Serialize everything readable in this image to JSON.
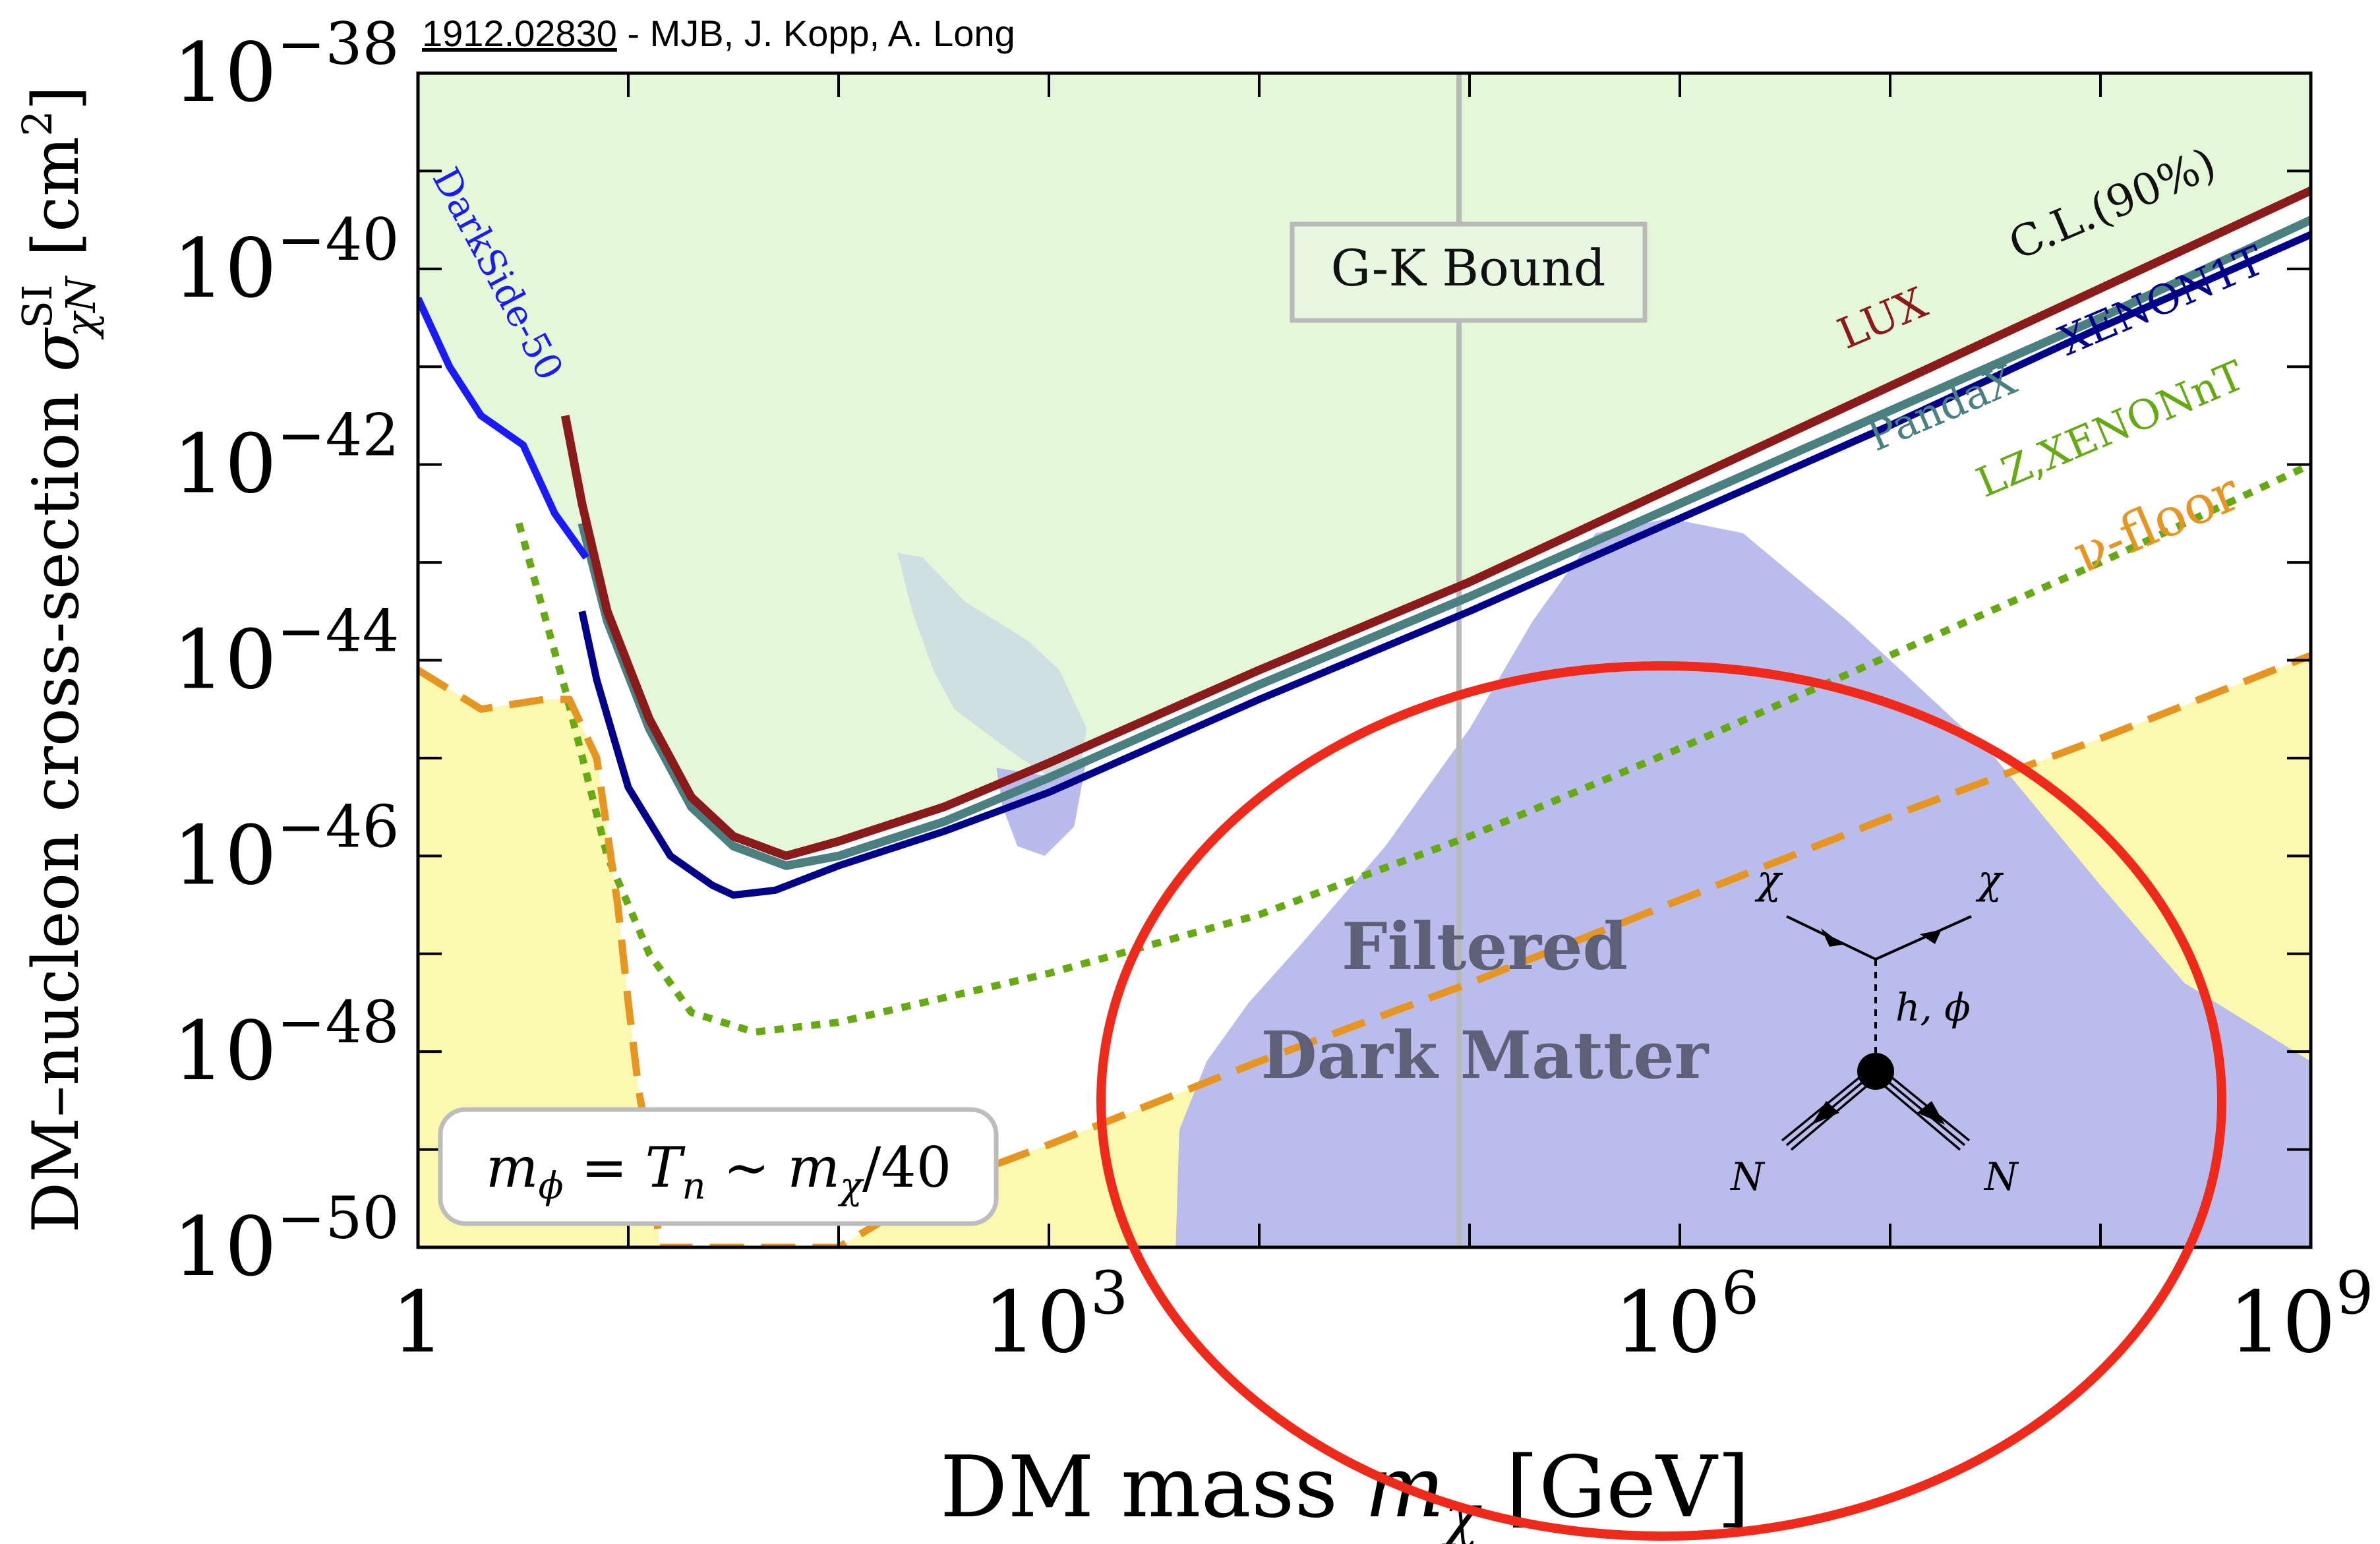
{
  "chart_data": {
    "type": "line",
    "source_ref": "1912.02830",
    "source_authors": " - MJB, J. Kopp, A. Long",
    "xlabel_main": "DM mass ",
    "xlabel_sym": "m",
    "xlabel_sub": "χ",
    "xlabel_unit": " [GeV]",
    "ylabel_main": "DM–nucleon cross-section ",
    "ylabel_sym": "σ",
    "ylabel_sup": "SI",
    "ylabel_sub": "χN",
    "ylabel_unit": " [cm",
    "ylabel_unit_sup": "2",
    "ylabel_unit_end": "]",
    "x_scale": "log10",
    "y_scale": "log10",
    "xlim_exp": [
      0,
      9
    ],
    "ylim_exp": [
      -50,
      -38
    ],
    "x_ticks": [
      {
        "exp": 0,
        "base": "1",
        "sup": ""
      },
      {
        "exp": 3,
        "base": "10",
        "sup": "3"
      },
      {
        "exp": 6,
        "base": "10",
        "sup": "6"
      },
      {
        "exp": 9,
        "base": "10",
        "sup": "9"
      }
    ],
    "y_ticks": [
      {
        "exp": -38,
        "base": "10",
        "sup": "−38"
      },
      {
        "exp": -40,
        "base": "10",
        "sup": "−40"
      },
      {
        "exp": -42,
        "base": "10",
        "sup": "−42"
      },
      {
        "exp": -44,
        "base": "10",
        "sup": "−44"
      },
      {
        "exp": -46,
        "base": "10",
        "sup": "−46"
      },
      {
        "exp": -48,
        "base": "10",
        "sup": "−48"
      },
      {
        "exp": -50,
        "base": "10",
        "sup": "−50"
      }
    ],
    "series": [
      {
        "name": "DarkSide-50",
        "color": "#1a1aff",
        "style": "solid",
        "points": [
          [
            0,
            -40.3
          ],
          [
            0.15,
            -41.0
          ],
          [
            0.3,
            -41.5
          ],
          [
            0.5,
            -41.8
          ],
          [
            0.65,
            -42.5
          ],
          [
            0.8,
            -42.95
          ]
        ]
      },
      {
        "name": "LUX",
        "color": "#8b1a1a",
        "style": "solid",
        "points": [
          [
            0.7,
            -41.5
          ],
          [
            0.78,
            -42.4
          ],
          [
            0.9,
            -43.5
          ],
          [
            1.1,
            -44.6
          ],
          [
            1.3,
            -45.4
          ],
          [
            1.5,
            -45.8
          ],
          [
            1.75,
            -46.0
          ],
          [
            2.0,
            -45.85
          ],
          [
            2.5,
            -45.5
          ],
          [
            3,
            -45.05
          ],
          [
            4,
            -44.1
          ],
          [
            5,
            -43.2
          ],
          [
            6,
            -42.2
          ],
          [
            7,
            -41.2
          ],
          [
            8,
            -40.2
          ],
          [
            9,
            -39.2
          ]
        ]
      },
      {
        "name": "PandaX",
        "color": "#4a8080",
        "style": "solid",
        "points": [
          [
            0.78,
            -42.6
          ],
          [
            0.9,
            -43.6
          ],
          [
            1.1,
            -44.7
          ],
          [
            1.3,
            -45.5
          ],
          [
            1.5,
            -45.9
          ],
          [
            1.75,
            -46.1
          ],
          [
            2.0,
            -46.0
          ],
          [
            2.5,
            -45.65
          ],
          [
            3,
            -45.2
          ],
          [
            4,
            -44.25
          ],
          [
            5,
            -43.35
          ],
          [
            6,
            -42.4
          ],
          [
            7,
            -41.45
          ],
          [
            8,
            -40.5
          ],
          [
            9,
            -39.5
          ]
        ]
      },
      {
        "name": "XENON1T",
        "color": "#00008b",
        "style": "solid",
        "points": [
          [
            0.78,
            -43.5
          ],
          [
            0.85,
            -44.2
          ],
          [
            1.0,
            -45.3
          ],
          [
            1.2,
            -46.0
          ],
          [
            1.4,
            -46.3
          ],
          [
            1.5,
            -46.4
          ],
          [
            1.7,
            -46.35
          ],
          [
            2.0,
            -46.1
          ],
          [
            2.5,
            -45.75
          ],
          [
            3,
            -45.35
          ],
          [
            4,
            -44.4
          ],
          [
            5,
            -43.5
          ],
          [
            6,
            -42.55
          ],
          [
            7,
            -41.6
          ],
          [
            8,
            -40.6
          ],
          [
            9,
            -39.65
          ]
        ]
      },
      {
        "name": "LZ,XENONnT",
        "color": "#66aa11",
        "style": "dotted",
        "points": [
          [
            0.48,
            -42.6
          ],
          [
            0.7,
            -44.3
          ],
          [
            0.9,
            -46.0
          ],
          [
            1.1,
            -47.0
          ],
          [
            1.3,
            -47.6
          ],
          [
            1.6,
            -47.8
          ],
          [
            2.0,
            -47.7
          ],
          [
            3,
            -47.2
          ],
          [
            4,
            -46.6
          ],
          [
            5,
            -45.8
          ],
          [
            6,
            -44.9
          ],
          [
            7,
            -43.95
          ],
          [
            8,
            -43.0
          ],
          [
            9,
            -42.0
          ]
        ]
      },
      {
        "name": "ν-floor",
        "color": "#e69520",
        "style": "dashed",
        "points": [
          [
            0,
            -44.1
          ],
          [
            0.3,
            -44.5
          ],
          [
            0.6,
            -44.4
          ],
          [
            0.72,
            -44.4
          ],
          [
            0.85,
            -45.0
          ],
          [
            0.95,
            -46.5
          ],
          [
            1.0,
            -47.5
          ],
          [
            1.05,
            -48.4
          ],
          [
            1.1,
            -49.0
          ],
          [
            1.15,
            -50.0
          ],
          [
            2,
            -50
          ],
          [
            2.5,
            -49.35
          ],
          [
            3,
            -48.95
          ],
          [
            4,
            -48.1
          ],
          [
            5,
            -47.3
          ],
          [
            6,
            -46.45
          ],
          [
            7,
            -45.6
          ],
          [
            8,
            -44.8
          ],
          [
            9,
            -43.95
          ]
        ]
      }
    ],
    "regions": [
      {
        "name": "Excluded region",
        "color": "#e4f7d9"
      },
      {
        "name": "ν-floor region",
        "color": "#fbf8b0"
      },
      {
        "name": "Upper blob",
        "color": "#cfdfe2"
      },
      {
        "name": "Lower blob",
        "color": "#b8bbec"
      },
      {
        "name": "Filtered dark matter region",
        "color": "#babcec"
      }
    ],
    "annotations": {
      "gk_label": "G-K Bound",
      "gk_x_exp": 4.95,
      "cl_label": "C.L.(90%)",
      "lux_label": "LUX",
      "xenon1t_label": "XENON1T",
      "pandax_label": "PandaX",
      "lz_label": "LZ,XENONnT",
      "nufloor_label": "ν-floor",
      "darkside_label": "DarkSide-50",
      "filtered_line1": "Filtered",
      "filtered_line2": "Dark Matter",
      "mass_relation": "mϕ = Tn ∼ mχ/40",
      "mass_relation_parts": {
        "m1": "m",
        "s1": "ϕ",
        "mid": " = ",
        "t": "T",
        "s2": "n",
        "sim": " ∼ ",
        "m2": "m",
        "s3": "χ",
        "tail": "/40"
      },
      "feyn_chi_left": "χ",
      "feyn_chi_right": "χ",
      "feyn_mediator": "h, ϕ",
      "feyn_n_left": "N",
      "feyn_n_right": "N"
    }
  }
}
